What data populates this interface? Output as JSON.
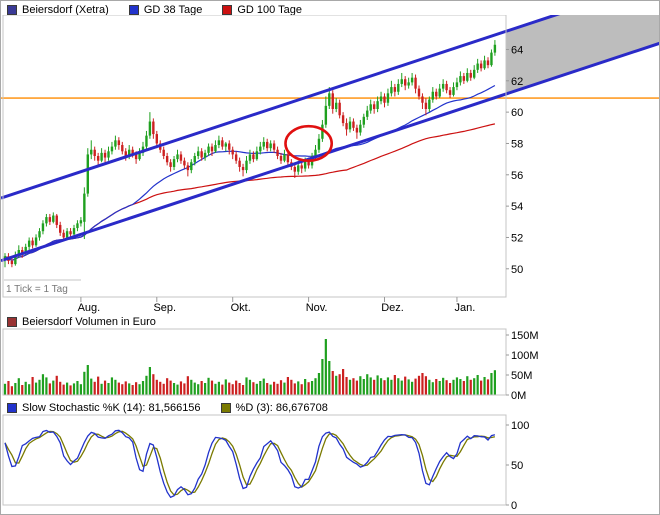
{
  "legend": {
    "price": [
      {
        "label": "Beiersdorf (Xetra)",
        "color": "#3a3a96"
      },
      {
        "label": "GD 38 Tage",
        "color": "#2233cc"
      },
      {
        "label": "GD 100 Tage",
        "color": "#cc1111"
      }
    ],
    "volume": [
      {
        "label": "Beiersdorf Volumen in Euro",
        "color": "#993333"
      }
    ],
    "stochastic": [
      {
        "label": "Slow Stochastic %K (14): 81,566156",
        "color": "#2233cc"
      },
      {
        "label": "%D (3): 86,676708",
        "color": "#7a7a00"
      }
    ]
  },
  "chart_data": [
    {
      "type": "candlestick",
      "title": "Beiersdorf (Xetra)",
      "x_axis": {
        "tick_note": "1 Tick = 1 Tag",
        "months": [
          "Aug.",
          "Sep.",
          "Okt.",
          "Nov.",
          "Dez.",
          "Jan."
        ],
        "month_day_index": [
          22,
          44,
          66,
          88,
          110,
          131
        ]
      },
      "y_axis": {
        "ticks": [
          50,
          52,
          54,
          56,
          58,
          60,
          62,
          64
        ],
        "range": [
          48.2,
          66.2
        ]
      },
      "candle_colors": {
        "up": "#1fa01f",
        "down": "#cc2020"
      },
      "overlays": {
        "gd38": {
          "label": "GD 38 Tage",
          "window": 38,
          "color": "#2233cc"
        },
        "gd100": {
          "label": "GD 100 Tage",
          "window": 100,
          "color": "#cc1111"
        },
        "trend_channel": {
          "color": "#2a2ac8",
          "slope_per_day": 0.0727,
          "lower_start": 50.6,
          "upper_start": 54.6,
          "projection_fill": "#bdbdbd",
          "projection_from_x": 505
        },
        "horizontal_line": {
          "price": 60.9,
          "color": "#ff8c00"
        },
        "ellipse_annotation": {
          "day": 88,
          "price": 58.0,
          "rx_days": 6.7,
          "ry_price": 1.1,
          "color": "#e01010"
        }
      },
      "candles": [
        [
          50.6,
          51.0,
          50.1,
          50.8
        ],
        [
          50.8,
          51.0,
          50.3,
          50.5
        ],
        [
          50.5,
          50.8,
          50.1,
          50.3
        ],
        [
          50.3,
          51.1,
          50.2,
          50.9
        ],
        [
          50.9,
          51.5,
          50.7,
          51.2
        ],
        [
          51.2,
          51.4,
          50.7,
          51.0
        ],
        [
          51.0,
          51.6,
          50.9,
          51.4
        ],
        [
          51.4,
          52.0,
          51.2,
          51.8
        ],
        [
          51.8,
          52.0,
          51.3,
          51.5
        ],
        [
          51.5,
          52.2,
          51.4,
          52.0
        ],
        [
          52.0,
          52.6,
          51.8,
          52.4
        ],
        [
          52.4,
          53.1,
          52.2,
          52.9
        ],
        [
          52.9,
          53.5,
          52.7,
          53.3
        ],
        [
          53.3,
          53.5,
          52.8,
          53.0
        ],
        [
          53.0,
          53.6,
          52.9,
          53.4
        ],
        [
          53.4,
          53.5,
          52.6,
          52.8
        ],
        [
          52.8,
          53.0,
          52.1,
          52.3
        ],
        [
          52.3,
          52.5,
          51.8,
          52.0
        ],
        [
          52.0,
          52.6,
          51.9,
          52.4
        ],
        [
          52.4,
          52.6,
          52.0,
          52.2
        ],
        [
          52.2,
          52.8,
          52.1,
          52.6
        ],
        [
          52.6,
          53.1,
          52.4,
          52.9
        ],
        [
          52.9,
          53.3,
          52.7,
          53.1
        ],
        [
          53.0,
          55.2,
          51.9,
          54.8
        ],
        [
          54.8,
          57.7,
          54.6,
          57.3
        ],
        [
          57.3,
          58.2,
          57.0,
          57.6
        ],
        [
          57.6,
          57.8,
          56.9,
          57.2
        ],
        [
          57.2,
          57.4,
          56.6,
          56.9
        ],
        [
          56.9,
          57.7,
          56.8,
          57.4
        ],
        [
          57.4,
          57.6,
          56.8,
          57.1
        ],
        [
          57.1,
          57.8,
          56.9,
          57.5
        ],
        [
          57.5,
          58.1,
          57.3,
          57.8
        ],
        [
          57.8,
          58.5,
          57.6,
          58.2
        ],
        [
          58.2,
          58.4,
          57.6,
          57.9
        ],
        [
          57.9,
          58.1,
          57.3,
          57.5
        ],
        [
          57.5,
          57.7,
          56.9,
          57.2
        ],
        [
          57.2,
          57.9,
          57.0,
          57.6
        ],
        [
          57.6,
          57.8,
          57.1,
          57.3
        ],
        [
          57.3,
          57.5,
          56.7,
          57.0
        ],
        [
          57.0,
          57.7,
          56.9,
          57.4
        ],
        [
          57.4,
          58.1,
          57.2,
          57.8
        ],
        [
          57.8,
          58.8,
          57.6,
          58.5
        ],
        [
          58.5,
          60.0,
          58.3,
          59.4
        ],
        [
          59.4,
          59.6,
          58.3,
          58.6
        ],
        [
          58.6,
          58.8,
          57.7,
          58.0
        ],
        [
          58.0,
          58.2,
          57.4,
          57.6
        ],
        [
          57.6,
          57.8,
          57.0,
          57.2
        ],
        [
          57.2,
          57.4,
          56.6,
          56.8
        ],
        [
          56.8,
          57.0,
          56.2,
          56.5
        ],
        [
          56.5,
          57.2,
          56.3,
          57.0
        ],
        [
          57.0,
          57.6,
          56.8,
          57.3
        ],
        [
          57.3,
          57.5,
          56.7,
          56.9
        ],
        [
          56.9,
          57.1,
          56.4,
          56.6
        ],
        [
          56.6,
          56.8,
          55.9,
          56.3
        ],
        [
          56.3,
          57.0,
          56.1,
          56.8
        ],
        [
          56.8,
          57.4,
          56.6,
          57.2
        ],
        [
          57.2,
          57.8,
          57.0,
          57.5
        ],
        [
          57.5,
          57.7,
          56.9,
          57.1
        ],
        [
          57.1,
          57.6,
          56.9,
          57.4
        ],
        [
          57.4,
          58.0,
          57.2,
          57.8
        ],
        [
          57.8,
          58.0,
          57.2,
          57.5
        ],
        [
          57.5,
          58.2,
          57.4,
          57.9
        ],
        [
          57.9,
          58.5,
          57.7,
          58.2
        ],
        [
          58.2,
          58.4,
          57.6,
          57.8
        ],
        [
          57.8,
          58.1,
          57.5,
          58.0
        ],
        [
          58.0,
          58.2,
          57.3,
          57.6
        ],
        [
          57.6,
          57.8,
          57.0,
          57.3
        ],
        [
          57.3,
          57.5,
          56.7,
          56.9
        ],
        [
          56.9,
          57.1,
          56.2,
          56.5
        ],
        [
          56.5,
          56.7,
          55.9,
          56.3
        ],
        [
          56.3,
          57.2,
          56.1,
          56.9
        ],
        [
          56.9,
          57.6,
          56.7,
          57.3
        ],
        [
          57.3,
          57.5,
          56.8,
          57.0
        ],
        [
          57.0,
          57.8,
          56.9,
          57.5
        ],
        [
          57.5,
          58.1,
          57.3,
          57.8
        ],
        [
          57.8,
          58.4,
          57.6,
          58.1
        ],
        [
          58.1,
          58.3,
          57.5,
          57.7
        ],
        [
          57.7,
          58.2,
          57.5,
          58.0
        ],
        [
          58.0,
          58.2,
          57.4,
          57.6
        ],
        [
          57.6,
          57.8,
          57.0,
          57.2
        ],
        [
          57.2,
          57.4,
          56.7,
          56.9
        ],
        [
          56.9,
          57.6,
          56.8,
          57.3
        ],
        [
          57.3,
          57.5,
          56.6,
          56.8
        ],
        [
          56.8,
          57.0,
          56.3,
          56.5
        ],
        [
          56.5,
          56.7,
          55.8,
          56.2
        ],
        [
          56.2,
          56.9,
          56.0,
          56.6
        ],
        [
          56.6,
          56.8,
          56.1,
          56.4
        ],
        [
          56.4,
          57.1,
          56.2,
          56.9
        ],
        [
          56.9,
          57.1,
          56.4,
          56.6
        ],
        [
          56.6,
          57.4,
          56.4,
          57.2
        ],
        [
          57.2,
          57.9,
          57.0,
          57.6
        ],
        [
          57.6,
          58.6,
          57.4,
          58.3
        ],
        [
          58.3,
          59.5,
          58.1,
          59.2
        ],
        [
          59.2,
          61.0,
          59.0,
          60.4
        ],
        [
          60.4,
          61.6,
          60.2,
          61.2
        ],
        [
          61.2,
          61.4,
          59.9,
          60.2
        ],
        [
          60.2,
          60.9,
          60.0,
          60.6
        ],
        [
          60.6,
          60.8,
          59.6,
          59.8
        ],
        [
          59.8,
          60.0,
          59.1,
          59.3
        ],
        [
          59.3,
          59.6,
          58.5,
          58.9
        ],
        [
          58.9,
          59.7,
          58.7,
          59.4
        ],
        [
          59.4,
          59.6,
          58.8,
          59.0
        ],
        [
          59.0,
          59.2,
          58.3,
          58.7
        ],
        [
          58.7,
          59.5,
          58.5,
          59.2
        ],
        [
          59.2,
          59.9,
          59.0,
          59.7
        ],
        [
          59.7,
          60.4,
          59.5,
          60.1
        ],
        [
          60.1,
          60.8,
          59.9,
          60.5
        ],
        [
          60.5,
          60.7,
          59.9,
          60.2
        ],
        [
          60.2,
          61.0,
          60.0,
          60.7
        ],
        [
          60.7,
          61.3,
          60.5,
          61.0
        ],
        [
          61.0,
          61.2,
          60.3,
          60.6
        ],
        [
          60.6,
          61.5,
          60.4,
          61.2
        ],
        [
          61.2,
          62.0,
          61.0,
          61.6
        ],
        [
          61.6,
          61.8,
          61.0,
          61.3
        ],
        [
          61.3,
          62.1,
          61.1,
          61.8
        ],
        [
          61.8,
          62.5,
          61.6,
          62.1
        ],
        [
          62.1,
          62.3,
          61.4,
          61.7
        ],
        [
          61.7,
          62.2,
          61.5,
          61.9
        ],
        [
          61.9,
          62.5,
          61.7,
          62.2
        ],
        [
          62.2,
          62.4,
          61.2,
          61.5
        ],
        [
          61.5,
          61.7,
          60.8,
          61.0
        ],
        [
          61.0,
          61.2,
          60.2,
          60.6
        ],
        [
          60.6,
          60.9,
          59.8,
          60.2
        ],
        [
          60.2,
          61.0,
          60.0,
          60.8
        ],
        [
          60.8,
          61.6,
          60.6,
          61.3
        ],
        [
          61.3,
          61.5,
          60.8,
          61.0
        ],
        [
          61.0,
          61.8,
          60.9,
          61.5
        ],
        [
          61.5,
          62.1,
          61.3,
          61.8
        ],
        [
          61.8,
          62.0,
          61.2,
          61.4
        ],
        [
          61.4,
          61.6,
          60.9,
          61.1
        ],
        [
          61.1,
          61.9,
          61.0,
          61.6
        ],
        [
          61.6,
          62.2,
          61.4,
          61.9
        ],
        [
          61.9,
          62.6,
          61.7,
          62.3
        ],
        [
          62.3,
          62.5,
          61.8,
          62.0
        ],
        [
          62.0,
          62.8,
          61.9,
          62.5
        ],
        [
          62.5,
          62.7,
          62.0,
          62.2
        ],
        [
          62.2,
          63.0,
          62.1,
          62.7
        ],
        [
          62.7,
          63.4,
          62.5,
          63.1
        ],
        [
          63.1,
          63.3,
          62.6,
          62.8
        ],
        [
          62.8,
          63.6,
          62.7,
          63.3
        ],
        [
          63.3,
          63.5,
          62.8,
          63.0
        ],
        [
          63.0,
          64.0,
          62.9,
          63.8
        ],
        [
          63.8,
          64.6,
          63.6,
          64.3
        ]
      ]
    },
    {
      "type": "bar",
      "title": "Beiersdorf Volumen in Euro",
      "y_axis": {
        "ticks": [
          {
            "label": "150M",
            "value": 150
          },
          {
            "label": "100M",
            "value": 100
          },
          {
            "label": "50M",
            "value": 50
          },
          {
            "label": "0M",
            "value": 0
          }
        ],
        "max": 150
      },
      "values_millions": [
        28,
        35,
        22,
        30,
        42,
        25,
        33,
        27,
        45,
        31,
        38,
        52,
        44,
        29,
        36,
        48,
        33,
        26,
        31,
        24,
        29,
        35,
        27,
        58,
        75,
        41,
        33,
        46,
        28,
        36,
        30,
        44,
        38,
        31,
        27,
        34,
        29,
        25,
        32,
        27,
        35,
        48,
        70,
        52,
        38,
        33,
        28,
        42,
        36,
        30,
        26,
        34,
        29,
        47,
        38,
        31,
        27,
        35,
        30,
        43,
        36,
        28,
        33,
        26,
        39,
        31,
        27,
        36,
        30,
        25,
        44,
        38,
        32,
        28,
        35,
        41,
        30,
        26,
        33,
        28,
        37,
        31,
        45,
        38,
        29,
        34,
        27,
        40,
        32,
        35,
        42,
        55,
        90,
        140,
        85,
        60,
        48,
        52,
        65,
        45,
        38,
        42,
        36,
        47,
        40,
        52,
        44,
        38,
        49,
        42,
        37,
        44,
        38,
        50,
        42,
        36,
        46,
        39,
        33,
        41,
        48,
        55,
        47,
        38,
        32,
        40,
        35,
        43,
        37,
        30,
        38,
        44,
        40,
        35,
        47,
        38,
        42,
        50,
        36,
        45,
        39,
        55,
        62
      ]
    },
    {
      "type": "line",
      "title": "Slow Stochastic",
      "params": {
        "k_period": 14,
        "k_smoothing": 3,
        "d_period": 3
      },
      "series": [
        {
          "name": "%K (14)",
          "last_value": "81,566156",
          "color": "#2233cc"
        },
        {
          "name": "%D (3)",
          "last_value": "86,676708",
          "color": "#7a7a00"
        }
      ],
      "y_axis": {
        "ticks": [
          100,
          50,
          0
        ],
        "range": [
          0,
          100
        ]
      }
    }
  ]
}
